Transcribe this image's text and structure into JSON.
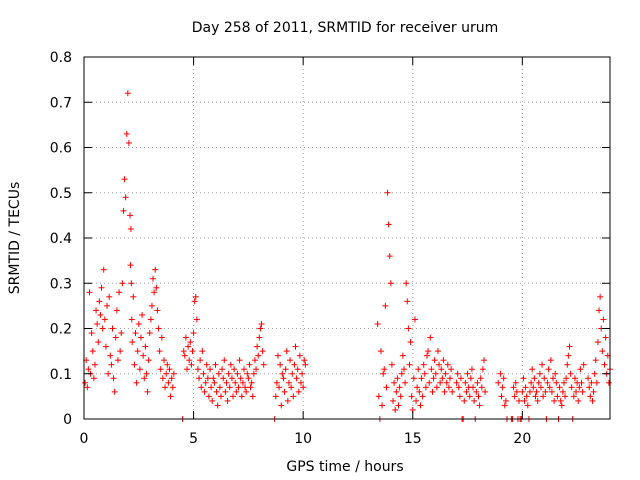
{
  "chart_data": {
    "type": "scatter",
    "title": "Day 258 of 2011, SRMTID for receiver urum",
    "xlabel": "GPS time / hours",
    "ylabel": "SRMTID / TECUs",
    "xlim": [
      0,
      24
    ],
    "ylim": [
      0,
      0.8
    ],
    "x_ticks": [
      0,
      5,
      10,
      15,
      20
    ],
    "x_tick_labels": [
      "0",
      "5",
      "10",
      "15",
      "20"
    ],
    "y_ticks": [
      0,
      0.1,
      0.2,
      0.3,
      0.4,
      0.5,
      0.6,
      0.7,
      0.8
    ],
    "y_tick_labels": [
      "0",
      "0.1",
      "0.2",
      "0.3",
      "0.4",
      "0.5",
      "0.6",
      "0.7",
      "0.8"
    ],
    "grid": true,
    "marker": "+",
    "series_color": "#ff0000",
    "series": [
      {
        "name": "SRMTID",
        "x": [
          0.05,
          0.1,
          0.15,
          0.2,
          0.25,
          0.3,
          0.35,
          0.4,
          0.45,
          0.5,
          0.55,
          0.6,
          0.65,
          0.7,
          0.75,
          0.8,
          0.85,
          0.9,
          0.95,
          1.0,
          1.05,
          1.1,
          1.15,
          1.2,
          1.25,
          1.3,
          1.35,
          1.4,
          1.45,
          1.5,
          1.55,
          1.6,
          1.65,
          1.7,
          1.75,
          1.8,
          1.85,
          1.9,
          1.95,
          2.0,
          2.05,
          2.1,
          2.12,
          2.14,
          2.16,
          2.18,
          2.2,
          2.25,
          2.3,
          2.35,
          2.4,
          2.45,
          2.5,
          2.55,
          2.6,
          2.65,
          2.7,
          2.75,
          2.8,
          2.85,
          2.9,
          2.95,
          3.0,
          3.05,
          3.1,
          3.15,
          3.2,
          3.25,
          3.3,
          3.35,
          3.4,
          3.45,
          3.5,
          3.55,
          3.6,
          3.65,
          3.7,
          3.75,
          3.8,
          3.85,
          3.9,
          3.95,
          4.0,
          4.05,
          4.1,
          4.5,
          4.55,
          4.6,
          4.65,
          4.7,
          4.75,
          4.8,
          4.85,
          4.9,
          4.95,
          5.0,
          5.05,
          5.1,
          5.15,
          5.2,
          5.25,
          5.3,
          5.35,
          5.4,
          5.45,
          5.5,
          5.55,
          5.6,
          5.65,
          5.7,
          5.75,
          5.8,
          5.85,
          5.9,
          5.95,
          6.0,
          6.05,
          6.1,
          6.15,
          6.2,
          6.25,
          6.3,
          6.35,
          6.4,
          6.45,
          6.5,
          6.55,
          6.6,
          6.65,
          6.7,
          6.75,
          6.8,
          6.85,
          6.9,
          6.95,
          7.0,
          7.05,
          7.1,
          7.15,
          7.2,
          7.25,
          7.3,
          7.35,
          7.4,
          7.45,
          7.5,
          7.55,
          7.6,
          7.65,
          7.7,
          7.75,
          7.8,
          7.85,
          7.9,
          7.95,
          8.0,
          8.05,
          8.1,
          8.15,
          8.2,
          8.7,
          8.75,
          8.8,
          8.85,
          8.9,
          8.95,
          9.0,
          9.05,
          9.1,
          9.15,
          9.2,
          9.25,
          9.3,
          9.35,
          9.4,
          9.45,
          9.5,
          9.55,
          9.6,
          9.65,
          9.7,
          9.75,
          9.8,
          9.85,
          9.9,
          9.95,
          10.0,
          10.05,
          10.1,
          13.4,
          13.45,
          13.5,
          13.55,
          13.6,
          13.65,
          13.7,
          13.75,
          13.8,
          13.85,
          13.9,
          13.95,
          14.0,
          14.05,
          14.1,
          14.15,
          14.2,
          14.25,
          14.3,
          14.35,
          14.4,
          14.45,
          14.5,
          14.55,
          14.6,
          14.65,
          14.7,
          14.75,
          14.8,
          14.85,
          14.9,
          14.95,
          15.0,
          15.05,
          15.1,
          15.15,
          15.2,
          15.25,
          15.3,
          15.35,
          15.4,
          15.45,
          15.5,
          15.55,
          15.6,
          15.65,
          15.7,
          15.75,
          15.8,
          15.85,
          15.9,
          15.95,
          16.0,
          16.05,
          16.1,
          16.15,
          16.2,
          16.25,
          16.3,
          16.35,
          16.4,
          16.45,
          16.5,
          16.55,
          16.6,
          16.65,
          16.7,
          16.75,
          16.8,
          17.0,
          17.05,
          17.1,
          17.15,
          17.2,
          17.25,
          17.3,
          17.35,
          17.4,
          17.45,
          17.5,
          17.55,
          17.6,
          17.65,
          17.7,
          17.75,
          17.8,
          17.85,
          17.9,
          17.95,
          18.0,
          18.05,
          18.1,
          18.15,
          18.2,
          18.25,
          18.3,
          18.9,
          19.0,
          19.05,
          19.1,
          19.15,
          19.2,
          19.25,
          19.3,
          19.5,
          19.55,
          19.6,
          19.65,
          19.7,
          19.75,
          19.8,
          19.85,
          19.9,
          19.95,
          20.0,
          20.05,
          20.1,
          20.15,
          20.2,
          20.25,
          20.3,
          20.35,
          20.4,
          20.45,
          20.5,
          20.55,
          20.6,
          20.65,
          20.7,
          20.75,
          20.8,
          20.85,
          20.9,
          20.95,
          21.0,
          21.05,
          21.1,
          21.15,
          21.2,
          21.25,
          21.3,
          21.35,
          21.4,
          21.45,
          21.5,
          21.55,
          21.6,
          21.65,
          21.7,
          21.75,
          21.8,
          21.85,
          21.9,
          21.95,
          22.0,
          22.05,
          22.1,
          22.15,
          22.2,
          22.25,
          22.3,
          22.35,
          22.4,
          22.45,
          22.5,
          22.55,
          22.6,
          22.65,
          22.7,
          22.75,
          22.8,
          23.0,
          23.05,
          23.1,
          23.15,
          23.2,
          23.25,
          23.3,
          23.35,
          23.4,
          23.45,
          23.5,
          23.55,
          23.6,
          23.65,
          23.7,
          23.75,
          23.8,
          23.85,
          23.9,
          23.95,
          24.0
        ],
        "y": [
          0.08,
          0.13,
          0.07,
          0.11,
          0.28,
          0.1,
          0.19,
          0.15,
          0.09,
          0.12,
          0.24,
          0.21,
          0.17,
          0.26,
          0.23,
          0.29,
          0.2,
          0.33,
          0.22,
          0.16,
          0.25,
          0.1,
          0.27,
          0.14,
          0.12,
          0.2,
          0.09,
          0.06,
          0.18,
          0.24,
          0.13,
          0.28,
          0.15,
          0.19,
          0.3,
          0.46,
          0.53,
          0.49,
          0.63,
          0.72,
          0.61,
          0.45,
          0.34,
          0.42,
          0.3,
          0.22,
          0.17,
          0.27,
          0.12,
          0.19,
          0.08,
          0.15,
          0.21,
          0.11,
          0.18,
          0.23,
          0.14,
          0.09,
          0.16,
          0.1,
          0.06,
          0.13,
          0.19,
          0.22,
          0.25,
          0.31,
          0.28,
          0.33,
          0.29,
          0.24,
          0.2,
          0.15,
          0.11,
          0.18,
          0.09,
          0.13,
          0.07,
          0.1,
          0.12,
          0.08,
          0.11,
          0.05,
          0.09,
          0.07,
          0.1,
          0.0,
          0.15,
          0.14,
          0.18,
          0.11,
          0.16,
          0.13,
          0.17,
          0.12,
          0.15,
          0.19,
          0.26,
          0.27,
          0.22,
          0.11,
          0.09,
          0.13,
          0.07,
          0.15,
          0.1,
          0.06,
          0.08,
          0.12,
          0.09,
          0.05,
          0.11,
          0.07,
          0.04,
          0.09,
          0.08,
          0.12,
          0.06,
          0.03,
          0.1,
          0.07,
          0.05,
          0.11,
          0.09,
          0.13,
          0.06,
          0.08,
          0.04,
          0.1,
          0.07,
          0.12,
          0.09,
          0.05,
          0.11,
          0.08,
          0.06,
          0.1,
          0.07,
          0.13,
          0.09,
          0.05,
          0.08,
          0.11,
          0.07,
          0.06,
          0.1,
          0.09,
          0.12,
          0.07,
          0.08,
          0.05,
          0.1,
          0.13,
          0.11,
          0.16,
          0.14,
          0.18,
          0.2,
          0.21,
          0.15,
          0.12,
          0.0,
          0.05,
          0.08,
          0.14,
          0.07,
          0.12,
          0.03,
          0.1,
          0.09,
          0.06,
          0.11,
          0.15,
          0.04,
          0.08,
          0.13,
          0.07,
          0.1,
          0.05,
          0.12,
          0.16,
          0.09,
          0.11,
          0.06,
          0.14,
          0.08,
          0.1,
          0.07,
          0.13,
          0.12,
          0.21,
          0.05,
          0.0,
          0.15,
          0.03,
          0.1,
          0.11,
          0.25,
          0.07,
          0.5,
          0.43,
          0.36,
          0.3,
          0.12,
          0.04,
          0.08,
          0.02,
          0.06,
          0.09,
          0.03,
          0.07,
          0.05,
          0.1,
          0.14,
          0.11,
          0.08,
          0.3,
          0.26,
          0.2,
          0.12,
          0.17,
          0.05,
          0.02,
          0.09,
          0.22,
          0.04,
          0.07,
          0.11,
          0.06,
          0.03,
          0.09,
          0.05,
          0.12,
          0.1,
          0.07,
          0.14,
          0.15,
          0.08,
          0.18,
          0.11,
          0.06,
          0.09,
          0.13,
          0.1,
          0.07,
          0.15,
          0.12,
          0.08,
          0.11,
          0.09,
          0.13,
          0.06,
          0.1,
          0.08,
          0.12,
          0.07,
          0.09,
          0.11,
          0.06,
          0.08,
          0.1,
          0.07,
          0.05,
          0.09,
          0.0,
          0.0,
          0.04,
          0.08,
          0.06,
          0.1,
          0.07,
          0.05,
          0.09,
          0.11,
          0.07,
          0.04,
          0.0,
          0.06,
          0.08,
          0.05,
          0.03,
          0.09,
          0.07,
          0.11,
          0.13,
          0.06,
          0.08,
          0.1,
          0.05,
          0.07,
          0.09,
          0.03,
          0.04,
          0.0,
          0.0,
          0.0,
          0.07,
          0.05,
          0.08,
          0.06,
          0.0,
          0.04,
          0.0,
          0.0,
          0.06,
          0.09,
          0.04,
          0.07,
          0.05,
          0.03,
          0.0,
          0.06,
          0.08,
          0.11,
          0.07,
          0.09,
          0.05,
          0.06,
          0.04,
          0.08,
          0.1,
          0.07,
          0.12,
          0.05,
          0.09,
          0.06,
          0.0,
          0.08,
          0.11,
          0.07,
          0.13,
          0.06,
          0.09,
          0.04,
          0.1,
          0.08,
          0.05,
          0.0,
          0.07,
          0.04,
          0.03,
          0.06,
          0.08,
          0.05,
          0.09,
          0.12,
          0.14,
          0.16,
          0.1,
          0.07,
          0.0,
          0.05,
          0.09,
          0.06,
          0.08,
          0.04,
          0.07,
          0.11,
          0.08,
          0.06,
          0.12,
          0.09,
          0.07,
          0.05,
          0.08,
          0.04,
          0.06,
          0.1,
          0.13,
          0.08,
          0.17,
          0.24,
          0.27,
          0.2,
          0.15,
          0.22,
          0.12,
          0.18,
          0.1,
          0.14,
          0.08,
          0.11
        ]
      }
    ]
  }
}
